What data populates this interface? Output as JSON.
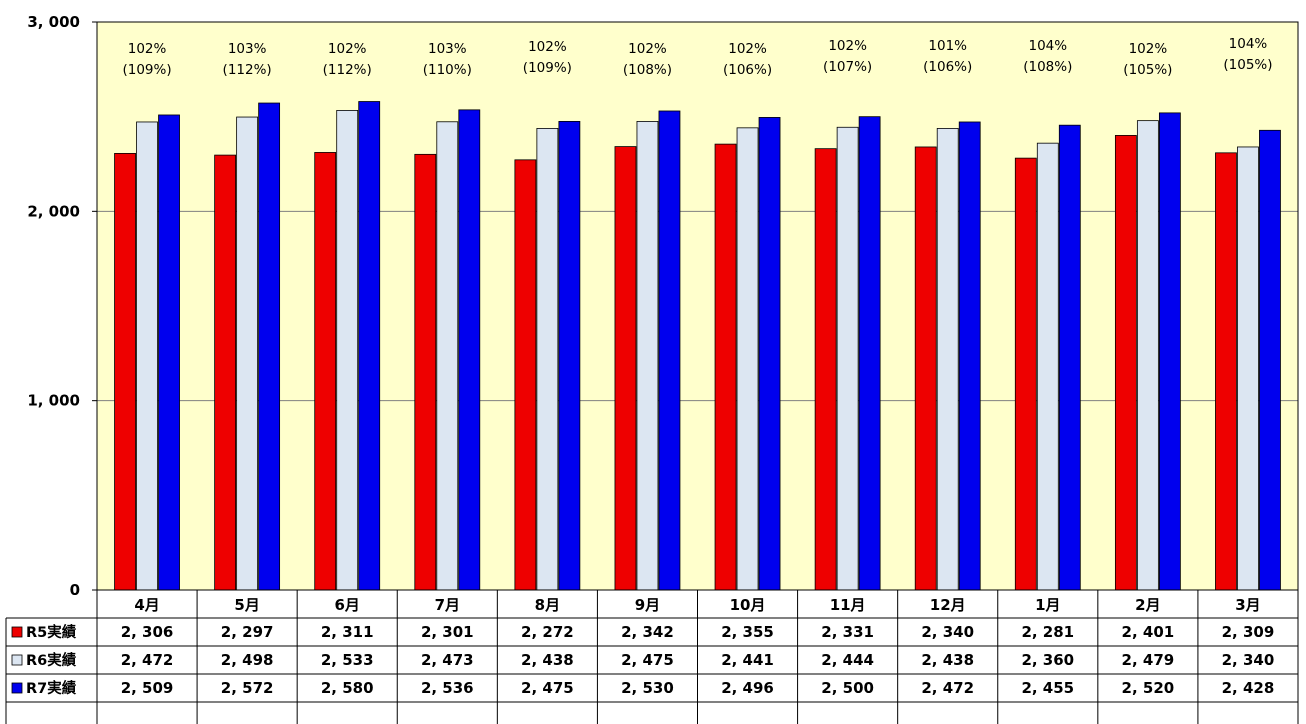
{
  "chart_data": {
    "type": "bar",
    "ylim": [
      0,
      3000
    ],
    "y_ticks": [
      "0",
      "1, 000",
      "2, 000",
      "3, 000"
    ],
    "y_tick_values": [
      0,
      1000,
      2000,
      3000
    ],
    "grid": true,
    "plot_background": "#ffffcc",
    "categories": [
      "4月",
      "5月",
      "6月",
      "7月",
      "8月",
      "9月",
      "10月",
      "11月",
      "12月",
      "1月",
      "2月",
      "3月"
    ],
    "series": [
      {
        "name": "R5実績",
        "color": "#ee0000",
        "values": [
          2306,
          2297,
          2311,
          2301,
          2272,
          2342,
          2355,
          2331,
          2340,
          2281,
          2401,
          2309
        ],
        "labels": [
          "2, 306",
          "2, 297",
          "2, 311",
          "2, 301",
          "2, 272",
          "2, 342",
          "2, 355",
          "2, 331",
          "2, 340",
          "2, 281",
          "2, 401",
          "2, 309"
        ]
      },
      {
        "name": "R6実績",
        "color": "#dce6f2",
        "values": [
          2472,
          2498,
          2533,
          2473,
          2438,
          2475,
          2441,
          2444,
          2438,
          2360,
          2479,
          2340
        ],
        "labels": [
          "2, 472",
          "2, 498",
          "2, 533",
          "2, 473",
          "2, 438",
          "2, 475",
          "2, 441",
          "2, 444",
          "2, 438",
          "2, 360",
          "2, 479",
          "2, 340"
        ]
      },
      {
        "name": "R7実績",
        "color": "#0000ee",
        "values": [
          2509,
          2572,
          2580,
          2536,
          2475,
          2530,
          2496,
          2500,
          2472,
          2455,
          2520,
          2428
        ],
        "labels": [
          "2, 509",
          "2, 572",
          "2, 580",
          "2, 536",
          "2, 475",
          "2, 530",
          "2, 496",
          "2, 500",
          "2, 472",
          "2, 455",
          "2, 520",
          "2, 428"
        ]
      }
    ],
    "annotations": [
      {
        "line1": "102%",
        "line2": "(109%)"
      },
      {
        "line1": "103%",
        "line2": "(112%)"
      },
      {
        "line1": "102%",
        "line2": "(112%)"
      },
      {
        "line1": "103%",
        "line2": "(110%)"
      },
      {
        "line1": "102%",
        "line2": "(109%)"
      },
      {
        "line1": "102%",
        "line2": "(108%)"
      },
      {
        "line1": "102%",
        "line2": "(106%)"
      },
      {
        "line1": "102%",
        "line2": "(107%)"
      },
      {
        "line1": "101%",
        "line2": "(106%)"
      },
      {
        "line1": "104%",
        "line2": "(108%)"
      },
      {
        "line1": "102%",
        "line2": "(105%)"
      },
      {
        "line1": "104%",
        "line2": "(105%)"
      }
    ]
  }
}
